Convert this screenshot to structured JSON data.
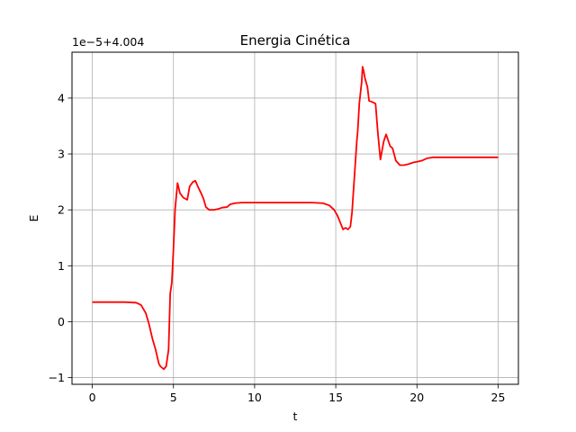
{
  "chart_data": {
    "type": "line",
    "title": "Energia Cinética",
    "xlabel": "t",
    "ylabel": "E",
    "offset_label": "1e−5+4.004",
    "xlim": [
      -1.25,
      26.25
    ],
    "ylim": [
      -1.12,
      4.82
    ],
    "xticks": [
      0,
      5,
      10,
      15,
      20,
      25
    ],
    "yticks": [
      -1,
      0,
      1,
      2,
      3,
      4
    ],
    "grid": true,
    "series": [
      {
        "color": "#ff0000",
        "x": [
          0,
          1,
          2,
          2.7,
          3.0,
          3.3,
          3.5,
          3.7,
          3.9,
          4.1,
          4.2,
          4.4,
          4.55,
          4.7,
          4.8,
          4.9,
          5.0,
          5.1,
          5.25,
          5.4,
          5.6,
          5.85,
          6.0,
          6.2,
          6.35,
          6.5,
          6.7,
          6.85,
          7.0,
          7.2,
          7.5,
          7.8,
          8.0,
          8.3,
          8.5,
          8.8,
          9.2,
          10,
          12,
          13.5,
          14.2,
          14.6,
          14.9,
          15.1,
          15.35,
          15.45,
          15.6,
          15.75,
          15.9,
          16.0,
          16.15,
          16.3,
          16.35,
          16.45,
          16.6,
          16.65,
          16.72,
          16.8,
          16.95,
          17.05,
          17.25,
          17.45,
          17.6,
          17.75,
          17.95,
          18.1,
          18.35,
          18.5,
          18.7,
          18.95,
          19.2,
          19.5,
          19.8,
          20.0,
          20.3,
          20.6,
          21,
          22,
          25
        ],
        "y": [
          0.35,
          0.35,
          0.35,
          0.34,
          0.3,
          0.15,
          -0.05,
          -0.3,
          -0.5,
          -0.75,
          -0.8,
          -0.85,
          -0.8,
          -0.5,
          0.5,
          0.7,
          1.3,
          2.0,
          2.48,
          2.3,
          2.22,
          2.18,
          2.42,
          2.5,
          2.52,
          2.42,
          2.3,
          2.2,
          2.05,
          2.0,
          2.0,
          2.02,
          2.04,
          2.05,
          2.1,
          2.12,
          2.13,
          2.13,
          2.13,
          2.13,
          2.12,
          2.08,
          2.0,
          1.9,
          1.72,
          1.65,
          1.68,
          1.65,
          1.7,
          1.95,
          2.6,
          3.25,
          3.4,
          3.9,
          4.3,
          4.56,
          4.48,
          4.35,
          4.2,
          3.95,
          3.93,
          3.9,
          3.35,
          2.9,
          3.22,
          3.35,
          3.14,
          3.1,
          2.88,
          2.8,
          2.8,
          2.82,
          2.85,
          2.86,
          2.88,
          2.92,
          2.94,
          2.94,
          2.94
        ]
      }
    ]
  }
}
